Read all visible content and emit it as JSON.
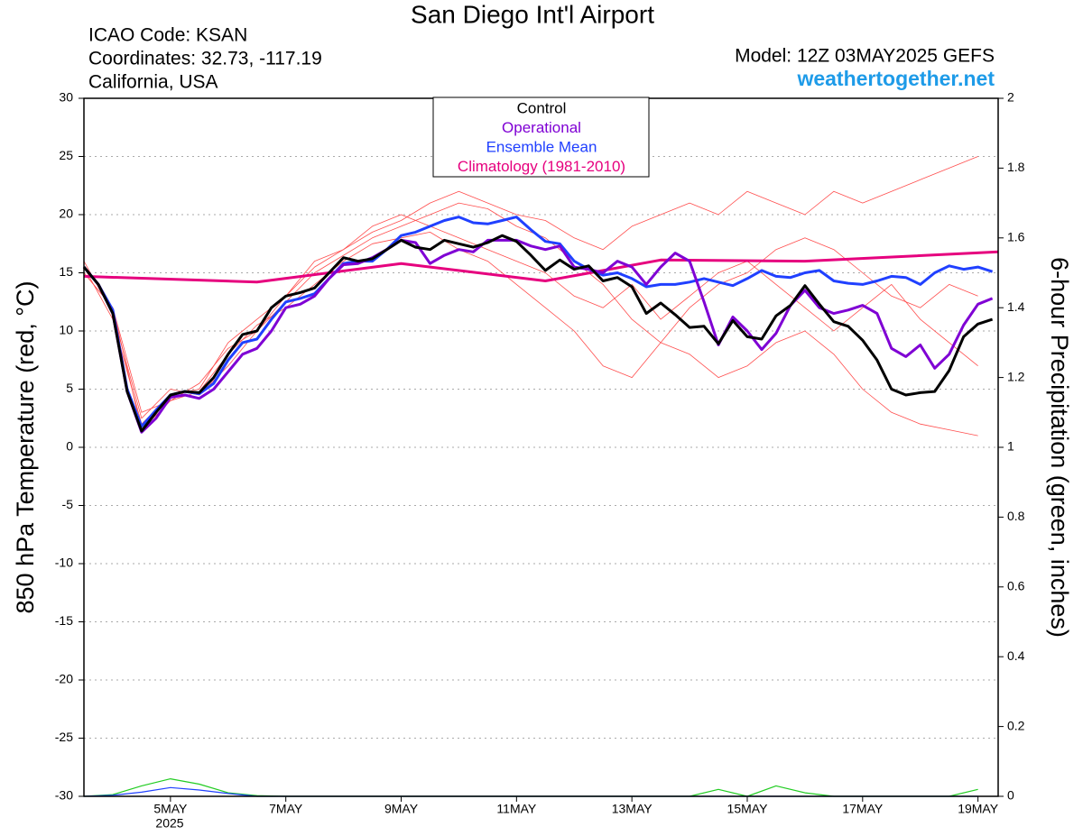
{
  "chart_data": {
    "type": "line",
    "title": "San Diego Int'l Airport",
    "subtitle": [
      "ICAO Code: KSAN",
      "Coordinates: 32.73, -117.19",
      "California, USA"
    ],
    "model": "Model: 12Z 03MAY2025 GEFS",
    "source": "weathertogether.net",
    "year_label": "2025",
    "ylabel": "850 hPa Temperature (red, °C)",
    "y2label": "6-hour Precipitation (green, inches)",
    "legend": "top",
    "grid": true,
    "xlim": [
      3.5,
      19.35
    ],
    "xticks": [
      {
        "value": 5,
        "label": "5MAY"
      },
      {
        "value": 7,
        "label": "7MAY"
      },
      {
        "value": 9,
        "label": "9MAY"
      },
      {
        "value": 11,
        "label": "11MAY"
      },
      {
        "value": 13,
        "label": "13MAY"
      },
      {
        "value": 15,
        "label": "15MAY"
      },
      {
        "value": 17,
        "label": "17MAY"
      },
      {
        "value": 19,
        "label": "19MAY"
      }
    ],
    "ylim": [
      -30,
      30
    ],
    "yticks": [
      -30,
      -25,
      -20,
      -15,
      -10,
      -5,
      0,
      5,
      10,
      15,
      20,
      25,
      30
    ],
    "y2lim": [
      0,
      2
    ],
    "y2ticks": [
      0,
      0.2,
      0.4,
      0.6,
      0.8,
      1,
      1.2,
      1.4,
      1.6,
      1.8,
      2
    ],
    "x": [
      3.5,
      3.75,
      4,
      4.25,
      4.5,
      4.75,
      5,
      5.25,
      5.5,
      5.75,
      6,
      6.25,
      6.5,
      6.75,
      7,
      7.25,
      7.5,
      7.75,
      8,
      8.25,
      8.5,
      8.75,
      9,
      9.25,
      9.5,
      9.75,
      10,
      10.25,
      10.5,
      10.75,
      11,
      11.25,
      11.5,
      11.75,
      12,
      12.25,
      12.5,
      12.75,
      13,
      13.25,
      13.5,
      13.75,
      14,
      14.25,
      14.5,
      14.75,
      15,
      15.25,
      15.5,
      15.75,
      16,
      16.25,
      16.5,
      16.75,
      17,
      17.25,
      17.5,
      17.75,
      18,
      18.25,
      18.5,
      18.75,
      19,
      19.25
    ],
    "series": [
      {
        "color": "#ff4d4d",
        "x": [
          3.5,
          4,
          4.5,
          5,
          5.5,
          6,
          6.5,
          7,
          7.5,
          8,
          8.5,
          9,
          9.5,
          10,
          10.5,
          11,
          11.5,
          12,
          12.5,
          13,
          13.5,
          14,
          14.5,
          15,
          15.5,
          16,
          16.5,
          17,
          17.5,
          18,
          18.5,
          19
        ],
        "values": [
          15.5,
          11,
          2,
          4.5,
          5,
          9,
          11,
          13,
          15.5,
          17,
          18.5,
          19.5,
          21,
          22,
          21,
          20,
          19.5,
          18,
          17,
          19,
          20,
          21,
          20,
          22,
          21,
          20,
          22,
          21,
          22,
          23,
          24,
          25
        ]
      },
      {
        "color": "#ff4d4d",
        "x": [
          3.5,
          4,
          4.5,
          5,
          5.5,
          6,
          6.5,
          7,
          7.5,
          8,
          8.5,
          9,
          9.5,
          10,
          10.5,
          11,
          11.5,
          12,
          12.5,
          13,
          13.5,
          14,
          14.5,
          15,
          15.5,
          16,
          16.5,
          17,
          17.5,
          18,
          18.5,
          19
        ],
        "values": [
          15,
          12,
          1.5,
          4,
          4.8,
          8,
          10.5,
          12,
          14,
          16,
          17.5,
          18,
          18.5,
          17,
          16,
          14,
          12,
          10,
          7,
          6,
          9,
          8,
          6,
          7,
          9,
          10,
          8,
          5,
          3,
          2,
          1.5,
          1
        ]
      },
      {
        "color": "#ff4d4d",
        "x": [
          3.5,
          4,
          4.5,
          5,
          5.5,
          6,
          6.5,
          7,
          7.5,
          8,
          8.5,
          9,
          9.5,
          10,
          10.5,
          11,
          11.5,
          12,
          12.5,
          13,
          13.5,
          14,
          14.5,
          15,
          15.5,
          16,
          16.5,
          17,
          17.5,
          18,
          18.5,
          19
        ],
        "values": [
          16,
          11.5,
          2.5,
          5,
          4.5,
          7,
          10,
          13,
          16,
          17,
          19,
          20,
          19,
          18,
          17,
          16,
          15,
          13,
          12,
          14,
          11,
          13,
          15,
          16,
          14,
          12,
          10,
          12,
          14,
          11,
          9,
          7
        ]
      },
      {
        "color": "#ff4d4d",
        "x": [
          3.5,
          4,
          4.5,
          5,
          5.5,
          6,
          6.5,
          7,
          7.5,
          8,
          8.5,
          9,
          9.5,
          10,
          10.5,
          11,
          11.5,
          12,
          12.5,
          13,
          13.5,
          14,
          14.5,
          15,
          15.5,
          16,
          16.5,
          17,
          17.5,
          18,
          18.5,
          19
        ],
        "values": [
          15,
          12,
          3,
          4,
          5.5,
          8.5,
          10,
          12.5,
          15,
          16.5,
          18,
          19,
          20,
          21,
          20.5,
          19,
          18,
          16,
          14,
          11,
          9,
          12,
          14,
          15,
          17,
          18,
          17,
          15,
          13,
          12,
          14,
          13
        ]
      },
      {
        "color": "#22cc22",
        "axis": "y2",
        "x": [
          3.5,
          4,
          4.5,
          5,
          5.5,
          6,
          6.5,
          7,
          7.5,
          8,
          8.5,
          9,
          9.5,
          10,
          10.5,
          11,
          11.5,
          12,
          12.5,
          13,
          13.5,
          14,
          14.5,
          15,
          15.5,
          16,
          16.5,
          17,
          17.5,
          18,
          18.5,
          19
        ],
        "values": [
          0,
          0.005,
          0.03,
          0.05,
          0.035,
          0.01,
          0.002,
          0,
          0,
          0,
          0,
          0,
          0,
          0,
          0,
          0,
          0,
          0,
          0,
          0,
          0,
          0,
          0.02,
          0,
          0.03,
          0.01,
          0,
          0,
          0,
          0,
          0,
          0.02
        ]
      },
      {
        "color": "#2040ff",
        "axis": "y2",
        "x": [
          3.5,
          4,
          4.5,
          5,
          5.5,
          6,
          6.5,
          7,
          7.5,
          8,
          8.5,
          9,
          9.5,
          10,
          10.5,
          11,
          11.5,
          12,
          12.5,
          13,
          13.5,
          14,
          14.5,
          15,
          15.5,
          16,
          16.5,
          17,
          17.5,
          18,
          18.5,
          19
        ],
        "values": [
          0,
          0.003,
          0.012,
          0.025,
          0.018,
          0.008,
          0,
          0,
          0,
          0,
          0,
          0,
          0,
          0,
          0,
          0,
          0,
          0,
          0,
          0,
          0,
          0,
          0,
          0,
          0,
          0,
          0,
          0,
          0,
          0,
          0,
          0
        ]
      },
      {
        "name": "Climatology (1981-2010)",
        "color": "#e6007e",
        "x": [
          3.5,
          6.5,
          9,
          11.5,
          13.5,
          16,
          19.35
        ],
        "values": [
          14.7,
          14.2,
          15.8,
          14.3,
          16.1,
          16,
          16.8
        ]
      },
      {
        "name": "Ensemble Mean",
        "color": "#2040ff",
        "values": [
          15.5,
          14,
          11.8,
          5,
          1.8,
          3.2,
          4.5,
          4.8,
          4.6,
          5.5,
          7.5,
          9,
          9.3,
          11,
          12.5,
          12.8,
          13.2,
          14.5,
          15.8,
          16,
          16,
          17,
          18.2,
          18.5,
          19,
          19.5,
          19.8,
          19.3,
          19.2,
          19.5,
          19.8,
          18.7,
          17.7,
          17.5,
          16,
          15.3,
          14.8,
          15,
          14.5,
          13.8,
          14,
          14,
          14.2,
          14.5,
          14.2,
          13.9,
          14.5,
          15.2,
          14.7,
          14.6,
          15,
          15.2,
          14.3,
          14.1,
          14,
          14.3,
          14.7,
          14.6,
          14,
          15,
          15.6,
          15.3,
          15.5,
          15.1
        ]
      },
      {
        "name": "Operational",
        "color": "#7f00d4",
        "values": [
          15.5,
          14,
          11.5,
          4.8,
          1.3,
          2.5,
          4.3,
          4.5,
          4.2,
          5,
          6.5,
          8,
          8.5,
          10,
          12,
          12.3,
          13,
          14.5,
          15.7,
          15.8,
          16.3,
          17,
          17.8,
          17.6,
          15.8,
          16.5,
          17,
          16.8,
          17.8,
          17.8,
          17.8,
          17.3,
          17,
          17.3,
          15.5,
          15.3,
          15,
          16,
          15.5,
          14,
          15.5,
          16.7,
          16,
          12.5,
          8.8,
          11.2,
          10,
          8.4,
          9.8,
          12.2,
          13.5,
          12,
          11.5,
          11.8,
          12.2,
          11.5,
          8.5,
          7.8,
          8.8,
          6.8,
          8,
          10.5,
          12.3,
          12.8
        ]
      },
      {
        "name": "Control",
        "color": "#000000",
        "values": [
          15.5,
          14,
          11.5,
          4.8,
          1.4,
          3,
          4.5,
          4.8,
          4.7,
          6,
          8,
          9.7,
          10,
          12,
          13,
          13.3,
          13.7,
          15,
          16.3,
          16,
          16.2,
          17,
          17.8,
          17.2,
          17,
          17.8,
          17.5,
          17.2,
          17.6,
          18.2,
          17.7,
          16.5,
          15.2,
          16.1,
          15.3,
          15.6,
          14.3,
          14.6,
          13.8,
          11.5,
          12.4,
          11.4,
          10.3,
          10.4,
          8.9,
          10.9,
          9.5,
          9.3,
          11.3,
          12.2,
          13.9,
          12.3,
          10.8,
          10.4,
          9.2,
          7.5,
          5,
          4.5,
          4.7,
          4.8,
          6.6,
          9.5,
          10.6,
          11
        ]
      }
    ]
  }
}
